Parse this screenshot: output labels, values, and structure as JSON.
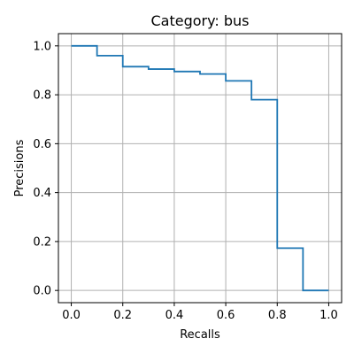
{
  "chart_data": {
    "type": "line",
    "title": "Category: bus",
    "xlabel": "Recalls",
    "ylabel": "Precisions",
    "xlim": [
      -0.05,
      1.05
    ],
    "ylim": [
      -0.05,
      1.05
    ],
    "grid": true,
    "step": "post",
    "x_ticks": [
      0.0,
      0.2,
      0.4,
      0.6,
      0.8,
      1.0
    ],
    "x_tick_labels": [
      "0.0",
      "0.2",
      "0.4",
      "0.6",
      "0.8",
      "1.0"
    ],
    "y_ticks": [
      0.0,
      0.2,
      0.4,
      0.6,
      0.8,
      1.0
    ],
    "y_tick_labels": [
      "0.0",
      "0.2",
      "0.4",
      "0.6",
      "0.8",
      "1.0"
    ],
    "series": [
      {
        "color": "#1f77b4",
        "x": [
          0.0,
          0.1,
          0.2,
          0.3,
          0.4,
          0.5,
          0.6,
          0.7,
          0.8,
          0.9,
          1.0
        ],
        "y": [
          1.0,
          0.96,
          0.915,
          0.905,
          0.895,
          0.885,
          0.857,
          0.78,
          0.173,
          0.0,
          0.0
        ]
      }
    ]
  }
}
